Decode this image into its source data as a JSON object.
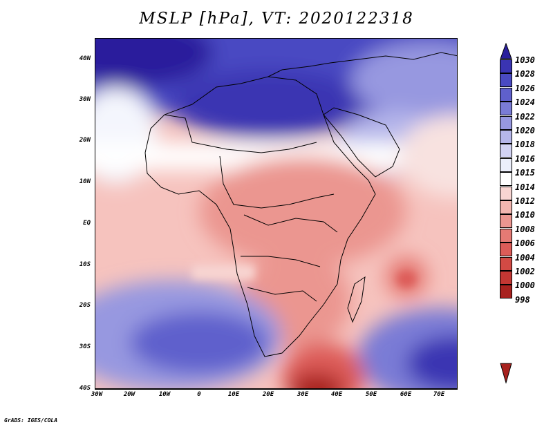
{
  "title": "MSLP [hPa], VT: 2020122318",
  "credit": "GrADS: IGES/COLA",
  "lat_labels": [
    "40N",
    "30N",
    "20N",
    "10N",
    "EQ",
    "10S",
    "20S",
    "30S",
    "40S"
  ],
  "lon_labels": [
    "30W",
    "20W",
    "10W",
    "0",
    "10E",
    "20E",
    "30E",
    "40E",
    "50E",
    "60E",
    "70E"
  ],
  "colorbar": {
    "levels": [
      "1030",
      "1028",
      "1026",
      "1024",
      "1022",
      "1020",
      "1018",
      "1016",
      "1015",
      "1014",
      "1012",
      "1010",
      "1008",
      "1006",
      "1004",
      "1002",
      "1000",
      "998"
    ],
    "colors": [
      "#2a1f9c",
      "#3a34b2",
      "#4a4ac2",
      "#5f60cc",
      "#7a7cd6",
      "#9798e0",
      "#b5b6ea",
      "#d2d3f3",
      "#eceffb",
      "#ffffff",
      "#f8d5d2",
      "#f2b6b0",
      "#eb9690",
      "#e57a74",
      "#dd5c58",
      "#d24a44",
      "#c33733",
      "#a8221f"
    ]
  },
  "icons": {
    "colorbar_top": "triangle-up-icon",
    "colorbar_bottom": "triangle-down-icon"
  }
}
